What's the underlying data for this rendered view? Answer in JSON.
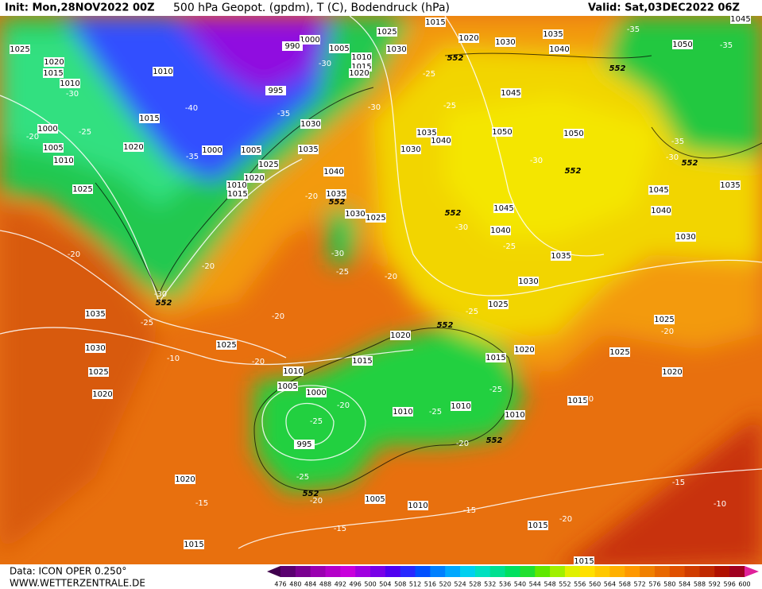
{
  "header": {
    "init": "Init: Mon,28NOV2022 00Z",
    "title": "500 hPa Geopot. (gpdm), T (C), Bodendruck (hPa)",
    "valid": "Valid: Sat,03DEC2022 06Z"
  },
  "footer": {
    "source": "Data: ICON OPER 0.250°",
    "url": "WWW.WETTERZENTRALE.DE"
  },
  "legend": {
    "values": [
      476,
      480,
      484,
      488,
      492,
      496,
      500,
      504,
      508,
      512,
      516,
      520,
      524,
      528,
      532,
      536,
      540,
      544,
      548,
      552,
      556,
      560,
      564,
      568,
      572,
      576,
      580,
      584,
      588,
      592,
      596,
      600
    ],
    "colors": [
      "#40004d",
      "#5a0070",
      "#7a0090",
      "#9a00b0",
      "#b400c8",
      "#c800dc",
      "#a000e0",
      "#7800e8",
      "#5000f0",
      "#2828ff",
      "#0050ff",
      "#0080ff",
      "#00a8ff",
      "#00d0f0",
      "#00e0c0",
      "#00e090",
      "#00e060",
      "#20e030",
      "#60e800",
      "#a0f000",
      "#e0f000",
      "#ffe000",
      "#ffc800",
      "#ffb000",
      "#ff9800",
      "#f08000",
      "#e86800",
      "#e05000",
      "#d03c00",
      "#c02800",
      "#b01000",
      "#a00020",
      "#e0209a"
    ]
  },
  "map": {
    "pressure_labels": [
      "1025",
      "1020",
      "1015",
      "1010",
      "1010",
      "1000",
      "1005",
      "1010",
      "1015",
      "1020",
      "1000",
      "1005",
      "1025",
      "995",
      "1000",
      "990",
      "1005",
      "1010",
      "1015",
      "1020",
      "1025",
      "1030",
      "1015",
      "1020",
      "1030",
      "1035",
      "1040",
      "1050",
      "1045",
      "1035",
      "1040",
      "1030",
      "1050",
      "1050",
      "1035",
      "1040",
      "1030",
      "1025",
      "1020",
      "1010",
      "1015",
      "1035",
      "1030",
      "1025",
      "1045",
      "1040",
      "1035",
      "1030",
      "1045",
      "1040",
      "1035",
      "1030",
      "1025",
      "1020",
      "1015",
      "1020",
      "1025",
      "1025",
      "1020",
      "1035",
      "1030",
      "1025",
      "1020",
      "1025",
      "1015",
      "1010",
      "1005",
      "1000",
      "995",
      "1010",
      "1010",
      "1010",
      "1015",
      "1020",
      "1005",
      "1010",
      "1015",
      "1015",
      "1015",
      "1045"
    ],
    "temperature_labels": [
      "-30",
      "-25",
      "-20",
      "-40",
      "-35",
      "-30",
      "-35",
      "-30",
      "-25",
      "-25",
      "-35",
      "-35",
      "-35",
      "-30",
      "-30",
      "-20",
      "-30",
      "-25",
      "-30",
      "-25",
      "-20",
      "-20",
      "-20",
      "-30",
      "-25",
      "-20",
      "-25",
      "-20",
      "-20",
      "-25",
      "-20",
      "-25",
      "-25",
      "-20",
      "-20",
      "-25",
      "-20",
      "-15",
      "-15",
      "-15",
      "-20",
      "-15",
      "-10",
      "-10"
    ],
    "geopotential_labels": [
      "552",
      "552",
      "552",
      "552",
      "552",
      "552",
      "552",
      "552",
      "552",
      "552"
    ]
  }
}
